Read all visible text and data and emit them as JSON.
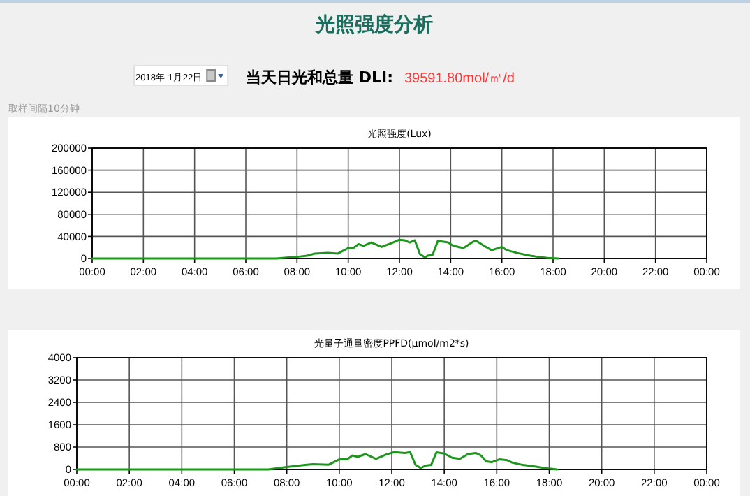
{
  "chart_data": [
    {
      "type": "other",
      "title": "光照强度分析",
      "annotations": [
        "2018年 1月22日",
        "当天日光和总量 DLI:",
        "39591.80mol/㎡/d",
        "取样间隔10分钟"
      ]
    },
    {
      "type": "line",
      "title": "光照强度(Lux)",
      "xlim": [
        0,
        24
      ],
      "ylim": [
        0,
        200000
      ],
      "grid": true,
      "xticks": [
        {
          "value": 0,
          "label": "00:00"
        },
        {
          "value": 2,
          "label": "02:00"
        },
        {
          "value": 4,
          "label": "04:00"
        },
        {
          "value": 6,
          "label": "06:00"
        },
        {
          "value": 8,
          "label": "08:00"
        },
        {
          "value": 10,
          "label": "10:00"
        },
        {
          "value": 12,
          "label": "12:00"
        },
        {
          "value": 14,
          "label": "14:00"
        },
        {
          "value": 16,
          "label": "16:00"
        },
        {
          "value": 18,
          "label": "18:00"
        },
        {
          "value": 20,
          "label": "20:00"
        },
        {
          "value": 22,
          "label": "22:00"
        },
        {
          "value": 24,
          "label": "00:00"
        }
      ],
      "yticks": [
        0,
        40000,
        80000,
        120000,
        160000,
        200000
      ],
      "series": [
        {
          "color": "#1e961e",
          "x": [
            0,
            2,
            4,
            6,
            7.2,
            8,
            8.4,
            8.7,
            9.2,
            9.6,
            10,
            10.2,
            10.4,
            10.6,
            10.9,
            11.3,
            11.7,
            12,
            12.2,
            12.4,
            12.6,
            12.8,
            13,
            13.1,
            13.3,
            13.5,
            13.9,
            14.1,
            14.5,
            14.9,
            15,
            15.3,
            15.6,
            16,
            16.2,
            16.6,
            17,
            17.4,
            17.8,
            18.2
          ],
          "values": [
            0,
            0,
            0,
            0,
            0,
            3000,
            5000,
            9000,
            10000,
            9000,
            19000,
            19000,
            26000,
            23000,
            29000,
            21000,
            28000,
            34000,
            33000,
            29000,
            33000,
            8000,
            2000,
            5000,
            7000,
            32000,
            29000,
            23000,
            19000,
            31000,
            32000,
            23000,
            15000,
            21000,
            15000,
            10000,
            6000,
            3000,
            1000,
            0
          ]
        }
      ]
    },
    {
      "type": "line",
      "title": "光量子通量密度PPFD(μmol/m2*s)",
      "xlim": [
        0,
        24
      ],
      "ylim": [
        0,
        4000
      ],
      "grid": true,
      "xticks": [
        {
          "value": 0,
          "label": "00:00"
        },
        {
          "value": 2,
          "label": "02:00"
        },
        {
          "value": 4,
          "label": "04:00"
        },
        {
          "value": 6,
          "label": "06:00"
        },
        {
          "value": 8,
          "label": "08:00"
        },
        {
          "value": 10,
          "label": "10:00"
        },
        {
          "value": 12,
          "label": "12:00"
        },
        {
          "value": 14,
          "label": "14:00"
        },
        {
          "value": 16,
          "label": "16:00"
        },
        {
          "value": 18,
          "label": "18:00"
        },
        {
          "value": 20,
          "label": "20:00"
        },
        {
          "value": 22,
          "label": "22:00"
        },
        {
          "value": 24,
          "label": "00:00"
        }
      ],
      "yticks": [
        0,
        800,
        1600,
        2400,
        3200,
        4000
      ],
      "series": [
        {
          "color": "#1e961e",
          "x": [
            0,
            2,
            4,
            6,
            7.3,
            8,
            8.7,
            9,
            9.6,
            10,
            10.3,
            10.5,
            10.7,
            11,
            11.4,
            11.8,
            12.1,
            12.5,
            12.7,
            12.9,
            13.1,
            13.3,
            13.5,
            13.7,
            14,
            14.3,
            14.6,
            14.9,
            15.2,
            15.4,
            15.6,
            15.8,
            16.1,
            16.4,
            16.6,
            17,
            17.5,
            17.8,
            18.3
          ],
          "values": [
            0,
            0,
            0,
            0,
            0,
            90,
            160,
            190,
            170,
            360,
            360,
            500,
            450,
            550,
            380,
            540,
            620,
            590,
            620,
            170,
            50,
            140,
            160,
            610,
            570,
            420,
            380,
            550,
            590,
            500,
            290,
            260,
            360,
            330,
            240,
            160,
            100,
            50,
            0
          ]
        }
      ]
    }
  ]
}
